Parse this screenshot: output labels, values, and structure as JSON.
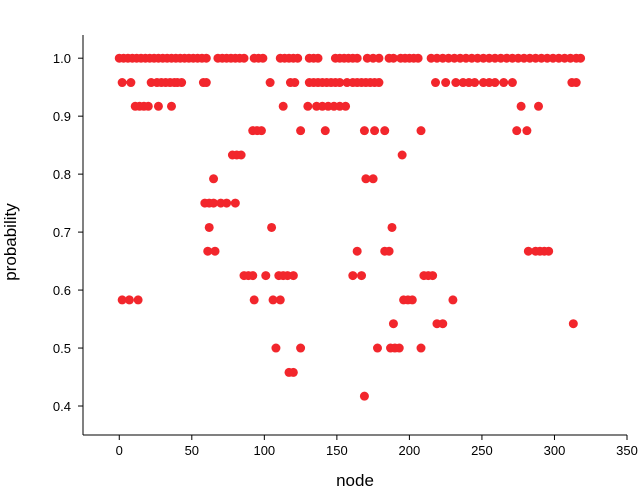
{
  "chart_data": {
    "type": "scatter",
    "x_label": "node",
    "y_label": "probability",
    "color": "#f2262c",
    "xlim": [
      -25,
      350
    ],
    "ylim": [
      0.35,
      1.04
    ],
    "xticks": [
      0,
      50,
      100,
      150,
      200,
      250,
      300,
      350
    ],
    "yticks": [
      0.4,
      0.5,
      0.6,
      0.7,
      0.8,
      0.9,
      {
        "value": 1,
        "label": "1.0"
      }
    ],
    "x": [
      0,
      3,
      6,
      9,
      12,
      15,
      18,
      21,
      24,
      27,
      30,
      33,
      36,
      39,
      42,
      45,
      48,
      51,
      54,
      57,
      60,
      68,
      71,
      74,
      77,
      80,
      83,
      86,
      93,
      96,
      99,
      111,
      114,
      117,
      120,
      123,
      131,
      134,
      137,
      149,
      152,
      155,
      158,
      161,
      164,
      171,
      175,
      179,
      186,
      189,
      194,
      197,
      200,
      203,
      206,
      215,
      219,
      223,
      227,
      231,
      235,
      239,
      243,
      247,
      251,
      255,
      259,
      263,
      267,
      271,
      275,
      279,
      283,
      287,
      291,
      295,
      299,
      303,
      307,
      311,
      315,
      318,
      2,
      8,
      22,
      26,
      29,
      32,
      35,
      38,
      40,
      43,
      58,
      60,
      104,
      118,
      121,
      131,
      134,
      137,
      140,
      143,
      146,
      149,
      152,
      157,
      161,
      164,
      167,
      170,
      173,
      176,
      179,
      218,
      225,
      232,
      237,
      241,
      245,
      251,
      255,
      259,
      265,
      271,
      312,
      315,
      11,
      14,
      17,
      20,
      27,
      36,
      113,
      130,
      136,
      140,
      144,
      148,
      152,
      156,
      277,
      289,
      92,
      95,
      98,
      125,
      142,
      169,
      176,
      183,
      208,
      274,
      281,
      78,
      81,
      84,
      195,
      65,
      170,
      175,
      59,
      62,
      65,
      70,
      74,
      80,
      62,
      105,
      188,
      61,
      66,
      164,
      183,
      186,
      282,
      287,
      290,
      293,
      296,
      86,
      89,
      92,
      101,
      110,
      113,
      116,
      120,
      161,
      167,
      210,
      213,
      216,
      2,
      7,
      13,
      93,
      106,
      111,
      196,
      199,
      202,
      230,
      189,
      219,
      223,
      313,
      108,
      125,
      178,
      187,
      190,
      193,
      208,
      117,
      120,
      169
    ],
    "values": [
      1,
      1,
      1,
      1,
      1,
      1,
      1,
      1,
      1,
      1,
      1,
      1,
      1,
      1,
      1,
      1,
      1,
      1,
      1,
      1,
      1,
      1,
      1,
      1,
      1,
      1,
      1,
      1,
      1,
      1,
      1,
      1,
      1,
      1,
      1,
      1,
      1,
      1,
      1,
      1,
      1,
      1,
      1,
      1,
      1,
      1,
      1,
      1,
      1,
      1,
      1,
      1,
      1,
      1,
      1,
      1,
      1,
      1,
      1,
      1,
      1,
      1,
      1,
      1,
      1,
      1,
      1,
      1,
      1,
      1,
      1,
      1,
      1,
      1,
      1,
      1,
      1,
      1,
      1,
      1,
      1,
      1,
      0.958,
      0.958,
      0.958,
      0.958,
      0.958,
      0.958,
      0.958,
      0.958,
      0.958,
      0.958,
      0.958,
      0.958,
      0.958,
      0.958,
      0.958,
      0.958,
      0.958,
      0.958,
      0.958,
      0.958,
      0.958,
      0.958,
      0.958,
      0.958,
      0.958,
      0.958,
      0.958,
      0.958,
      0.958,
      0.958,
      0.958,
      0.958,
      0.958,
      0.958,
      0.958,
      0.958,
      0.958,
      0.958,
      0.958,
      0.958,
      0.958,
      0.958,
      0.958,
      0.958,
      0.917,
      0.917,
      0.917,
      0.917,
      0.917,
      0.917,
      0.917,
      0.917,
      0.917,
      0.917,
      0.917,
      0.917,
      0.917,
      0.917,
      0.917,
      0.917,
      0.875,
      0.875,
      0.875,
      0.875,
      0.875,
      0.875,
      0.875,
      0.875,
      0.875,
      0.875,
      0.875,
      0.833,
      0.833,
      0.833,
      0.833,
      0.792,
      0.792,
      0.792,
      0.75,
      0.75,
      0.75,
      0.75,
      0.75,
      0.75,
      0.708,
      0.708,
      0.708,
      0.667,
      0.667,
      0.667,
      0.667,
      0.667,
      0.667,
      0.667,
      0.667,
      0.667,
      0.667,
      0.625,
      0.625,
      0.625,
      0.625,
      0.625,
      0.625,
      0.625,
      0.625,
      0.625,
      0.625,
      0.625,
      0.625,
      0.625,
      0.583,
      0.583,
      0.583,
      0.583,
      0.583,
      0.583,
      0.583,
      0.583,
      0.583,
      0.583,
      0.542,
      0.542,
      0.542,
      0.542,
      0.5,
      0.5,
      0.5,
      0.5,
      0.5,
      0.5,
      0.5,
      0.458,
      0.458,
      0.417
    ]
  }
}
